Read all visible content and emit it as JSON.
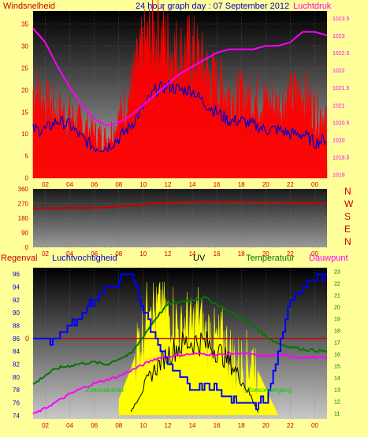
{
  "colors": {
    "background": "#ffff99",
    "wind_speed": "#ff0000",
    "wind_gust": "#0000cc",
    "pressure": "#ff00ff",
    "direction": "#cc0000",
    "humidity": "#0000ff",
    "uv": "#ffff00",
    "solar": "#000000",
    "temperature": "#007700",
    "dewpoint": "#ff00ff",
    "rain": "#cc0000",
    "title": "#0000cc",
    "tick_text": "#cc0000"
  },
  "top": {
    "title": "24 hour graph day : 07 September 2012",
    "left_label": "Windsnelheid",
    "right_label": "Luchtdruk"
  },
  "bottom_labels": {
    "rain": "Regenval",
    "humidity": "Luchtvochtigheid",
    "uv": "UV",
    "temperature": "Temperatuur",
    "dewpoint": "Dauwpunt",
    "sunrise": "Zonsopkomst",
    "sunset": "Zonsondergang"
  },
  "chart_data": [
    {
      "type": "line",
      "title": "24 hour graph day : 07 September 2012",
      "x_ticks": [
        "02",
        "04",
        "06",
        "08",
        "10",
        "12",
        "14",
        "16",
        "18",
        "20",
        "22",
        "00"
      ],
      "x_range": [
        1,
        25
      ],
      "left_axis": {
        "label": "Windsnelheid",
        "ticks": [
          0,
          5,
          10,
          15,
          20,
          25,
          30,
          35
        ],
        "ylim": [
          0,
          38
        ]
      },
      "right_axis": {
        "label": "Luchtdruk",
        "ticks": [
          1019,
          1019.5,
          1020,
          1020.5,
          1021,
          1021.5,
          1022,
          1022.5,
          1023,
          1023.5
        ],
        "ylim": [
          1018.9,
          1023.7
        ]
      },
      "series": [
        {
          "name": "Windsnelheid",
          "axis": "left",
          "x": [
            1,
            2,
            3,
            4,
            5,
            6,
            7,
            8,
            9,
            10,
            11,
            12,
            13,
            14,
            15,
            16,
            17,
            18,
            19,
            20,
            21,
            22,
            23,
            24,
            25
          ],
          "values": [
            20,
            17,
            15,
            14,
            12,
            10,
            9,
            13,
            20,
            28,
            32,
            29,
            27,
            28,
            24,
            21,
            19,
            18,
            18,
            17,
            16,
            18,
            19,
            15,
            14
          ]
        },
        {
          "name": "Windstoten",
          "axis": "left",
          "x": [
            1,
            2,
            3,
            4,
            5,
            6,
            7,
            8,
            9,
            10,
            11,
            12,
            13,
            14,
            15,
            16,
            17,
            18,
            19,
            20,
            21,
            22,
            23,
            24,
            25
          ],
          "values": [
            11,
            11,
            13,
            12,
            9,
            7,
            7,
            9,
            12,
            16,
            20,
            21,
            20,
            20,
            17,
            15,
            13,
            13,
            12,
            11,
            11,
            10,
            10,
            8,
            9
          ]
        },
        {
          "name": "Luchtdruk",
          "axis": "right",
          "x": [
            1,
            2,
            3,
            4,
            5,
            6,
            7,
            8,
            9,
            10,
            11,
            12,
            13,
            14,
            15,
            16,
            17,
            18,
            19,
            20,
            21,
            22,
            23,
            24,
            25
          ],
          "values": [
            1023.2,
            1022.8,
            1022.1,
            1021.5,
            1021.0,
            1020.6,
            1020.4,
            1020.5,
            1020.7,
            1021.0,
            1021.3,
            1021.6,
            1021.9,
            1022.1,
            1022.3,
            1022.5,
            1022.6,
            1022.6,
            1022.6,
            1022.7,
            1022.7,
            1022.8,
            1023.1,
            1023.1,
            1023.0
          ]
        }
      ]
    },
    {
      "type": "line",
      "x_ticks": [
        "02",
        "04",
        "06",
        "08",
        "10",
        "12",
        "14",
        "16",
        "18",
        "20",
        "22",
        "00"
      ],
      "x_range": [
        1,
        25
      ],
      "left_axis": {
        "ticks": [
          0,
          90,
          180,
          270,
          360
        ],
        "ylim": [
          0,
          360
        ]
      },
      "right_axis": {
        "ticks": [
          "N",
          "W",
          "S",
          "E",
          "N"
        ]
      },
      "series": [
        {
          "name": "Windrichting",
          "x": [
            1,
            3,
            5,
            7,
            9,
            11,
            13,
            15,
            17,
            19,
            21,
            23,
            25
          ],
          "values": [
            240,
            242,
            243,
            245,
            258,
            272,
            278,
            281,
            279,
            278,
            276,
            273,
            270
          ]
        }
      ]
    },
    {
      "type": "line",
      "x_ticks": [
        "02",
        "04",
        "06",
        "08",
        "10",
        "12",
        "14",
        "16",
        "18",
        "20",
        "22",
        "00"
      ],
      "x_range": [
        1,
        25
      ],
      "left_axis": {
        "label": "Luchtvochtigheid",
        "ticks": [
          74,
          76,
          78,
          80,
          82,
          84,
          86,
          88,
          90,
          92,
          94,
          96
        ],
        "ylim": [
          73.5,
          97
        ]
      },
      "right_axis": {
        "label": "Temperatuur",
        "ticks": [
          11,
          12,
          13,
          14,
          15,
          16,
          17,
          18,
          19,
          20,
          21,
          22,
          23
        ],
        "ylim": [
          10.5,
          23.3
        ]
      },
      "rain_marker": {
        "label": "0",
        "value": 0
      },
      "annotations": [
        "Zonsopkomst",
        "Zonsondergang"
      ],
      "series": [
        {
          "name": "Luchtvochtigheid",
          "axis": "left",
          "x": [
            1,
            2,
            3,
            4,
            5,
            6,
            7,
            8,
            9,
            10,
            11,
            12,
            13,
            14,
            15,
            16,
            17,
            18,
            19,
            20,
            21,
            22,
            23,
            24,
            25
          ],
          "values": [
            86,
            86,
            86,
            88,
            90,
            92,
            94,
            95,
            96,
            90,
            86,
            82,
            80,
            78,
            79,
            78,
            77,
            76,
            76,
            76,
            84,
            92,
            94,
            96,
            96
          ]
        },
        {
          "name": "Temperatuur",
          "axis": "right",
          "x": [
            1,
            2,
            3,
            4,
            5,
            6,
            7,
            8,
            9,
            10,
            11,
            12,
            13,
            14,
            15,
            16,
            17,
            18,
            19,
            20,
            21,
            22,
            23,
            24,
            25
          ],
          "values": [
            13.4,
            14.2,
            14.8,
            15.0,
            15.2,
            15.3,
            15.1,
            15.6,
            16.0,
            17.5,
            19.0,
            20.2,
            20.4,
            20.6,
            20.8,
            20.2,
            19.6,
            19.0,
            18.4,
            17.5,
            16.9,
            16.6,
            16.4,
            16.3,
            16.2
          ]
        },
        {
          "name": "Dauwpunt",
          "axis": "right",
          "x": [
            1,
            2,
            3,
            4,
            5,
            6,
            7,
            8,
            9,
            10,
            11,
            12,
            13,
            14,
            15,
            16,
            17,
            18,
            19,
            20,
            21,
            22,
            23,
            24,
            25
          ],
          "values": [
            10.9,
            11.4,
            12.0,
            12.6,
            13.1,
            13.5,
            13.8,
            14.1,
            14.6,
            15.1,
            15.6,
            15.8,
            15.9,
            16.0,
            16.0,
            15.9,
            16.0,
            16.1,
            15.9,
            15.8,
            15.9,
            15.8,
            15.7,
            15.7,
            15.6
          ]
        },
        {
          "name": "UV",
          "axis": "uv",
          "x": [
            8,
            9,
            9.5,
            10,
            10.5,
            11,
            11.5,
            12,
            12.5,
            13,
            13.5,
            14,
            14.5,
            15,
            15.5,
            16,
            16.5,
            17,
            17.5,
            18,
            19,
            20,
            21
          ],
          "values": [
            0.12,
            0.35,
            0.5,
            0.6,
            0.95,
            0.7,
            0.85,
            0.7,
            0.75,
            0.55,
            0.7,
            0.6,
            0.75,
            0.55,
            0.6,
            0.5,
            0.55,
            0.45,
            0.35,
            0.35,
            0.4,
            0.2,
            0.0
          ]
        }
      ]
    }
  ]
}
